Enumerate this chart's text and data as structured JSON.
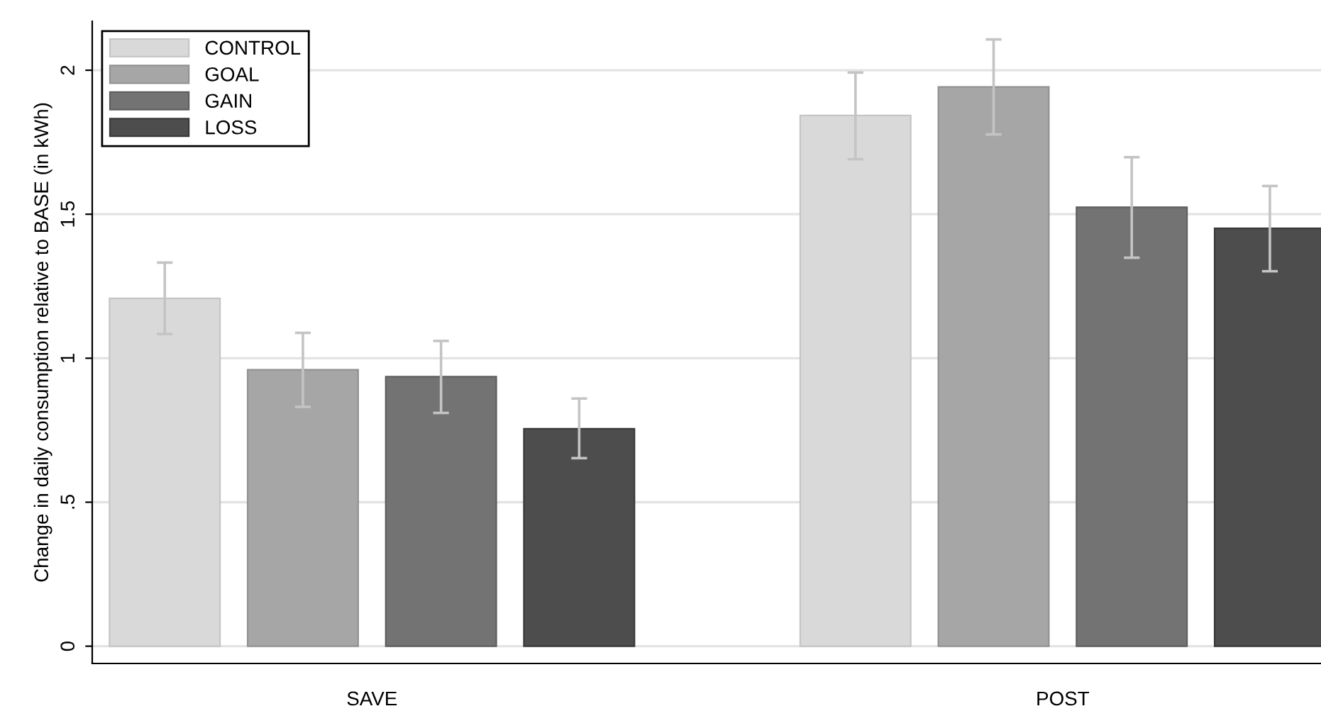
{
  "chart_data": {
    "type": "bar",
    "ylabel": "Change in daily consumption relative to BASE (in kWh)",
    "categories": [
      "SAVE",
      "POST"
    ],
    "series": [
      {
        "name": "CONTROL",
        "color": "#d9d9d9",
        "values": [
          1.208,
          1.843
        ],
        "errors": [
          [
            1.084,
            1.332
          ],
          [
            1.691,
            1.992
          ]
        ]
      },
      {
        "name": "GOAL",
        "color": "#a6a6a6",
        "values": [
          0.96,
          1.942
        ],
        "errors": [
          [
            0.831,
            1.088
          ],
          [
            1.777,
            2.107
          ]
        ]
      },
      {
        "name": "GAIN",
        "color": "#737373",
        "values": [
          0.936,
          1.524
        ],
        "errors": [
          [
            0.81,
            1.06
          ],
          [
            1.349,
            1.698
          ]
        ]
      },
      {
        "name": "LOSS",
        "color": "#4d4d4d",
        "values": [
          0.755,
          1.451
        ],
        "errors": [
          [
            0.653,
            0.86
          ],
          [
            1.302,
            1.598
          ]
        ]
      }
    ],
    "ylim": [
      -0.06,
      2.17
    ],
    "yticks": [
      0,
      {
        "value": 0.5,
        "label": ".5"
      },
      1,
      1.5,
      2
    ],
    "grid": "y",
    "legend": "top left"
  }
}
